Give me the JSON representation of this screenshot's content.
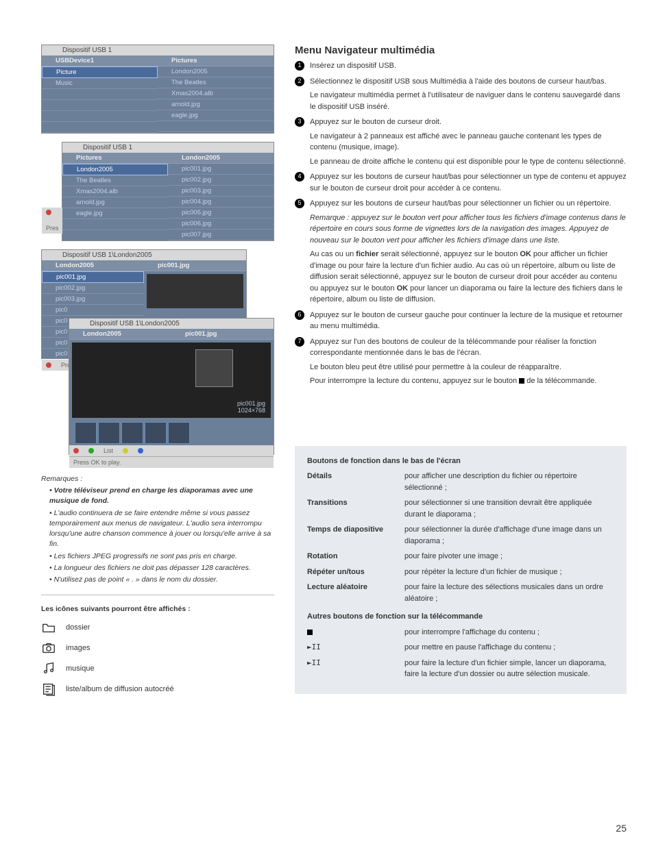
{
  "pageNumber": "25",
  "heading": "Menu Navigateur multimédia",
  "shots": {
    "s1": {
      "title": "Dispositif USB 1",
      "left": {
        "head": "USBDevice1",
        "rows": [
          "Picture",
          "Music"
        ],
        "selectedIndex": 0
      },
      "right": {
        "head": "Pictures",
        "rows": [
          "London2005",
          "The Beatles",
          "Xmas2004.alb",
          "arnold.jpg",
          "eagle.jpg"
        ]
      }
    },
    "s2": {
      "title": "Dispositif USB 1",
      "footerText": "Pres",
      "left": {
        "head": "Pictures",
        "rows": [
          "London2005",
          "The Beatles",
          "Xmas2004.alb",
          "arnold.jpg",
          "eagle.jpg"
        ],
        "selectedIndex": 0
      },
      "right": {
        "head": "London2005",
        "rows": [
          "pic001.jpg",
          "pic002.jpg",
          "pic003.jpg",
          "pic004.jpg",
          "pic005.jpg",
          "pic006.jpg",
          "pic007.jpg"
        ]
      }
    },
    "s3": {
      "title": "Dispositif USB 1\\London2005",
      "left": {
        "head": "London2005",
        "rows": [
          "pic001.jpg",
          "pic002.jpg",
          "pic003.jpg",
          "pic0",
          "pic0",
          "pic0",
          "pic0",
          "pic0"
        ],
        "selectedIndex": 0
      },
      "right": {
        "head": "pic001.jpg"
      },
      "footerText": "Press O"
    },
    "s4": {
      "title": "Dispositif USB 1\\London2005",
      "left": {
        "head": "London2005"
      },
      "right": {
        "head": "pic001.jpg"
      },
      "previewName": "pic001.jpg",
      "previewSize": "1024×768",
      "footerList": "List",
      "footerText": "Press OK to play."
    }
  },
  "remarques": {
    "title": "Remarques :",
    "items": [
      {
        "text": "Votre téléviseur prend en charge les diaporamas avec une musique de fond.",
        "bold": true
      },
      {
        "text": "L'audio continuera de se faire entendre même si vous passez temporairement aux menus de navigateur. L'audio sera interrompu lorsqu'une autre chanson commence à jouer ou lorsqu'elle arrive à sa fin."
      },
      {
        "text": "Les fichiers JPEG progressifs ne sont pas pris en charge."
      },
      {
        "text": "La longueur des fichiers ne doit pas dépasser 128 caractères."
      },
      {
        "text": "N'utilisez pas de point « . » dans le nom du dossier."
      }
    ]
  },
  "iconsTitle": "Les icônes suivants pourront être affichés :",
  "icons": [
    {
      "name": "folder-icon",
      "label": "dossier"
    },
    {
      "name": "camera-icon",
      "label": "images"
    },
    {
      "name": "music-note-icon",
      "label": "musique"
    },
    {
      "name": "playlist-icon",
      "label": "liste/album de diffusion autocréé"
    }
  ],
  "steps": [
    {
      "n": "1",
      "paras": [
        "Insérez un dispositif USB."
      ]
    },
    {
      "n": "2",
      "paras": [
        "Sélectionnez le dispositif USB sous Multimédia à l'aide des boutons de curseur haut/bas.",
        "Le navigateur multimédia permet à l'utilisateur de naviguer dans le contenu sauvegardé dans le dispositif USB inséré."
      ]
    },
    {
      "n": "3",
      "paras": [
        "Appuyez sur le bouton de curseur droit.",
        "Le navigateur à 2 panneaux est affiché avec le panneau gauche contenant les types de contenu (musique, image).",
        "Le panneau de droite affiche le contenu qui est disponible pour le type de contenu sélectionné."
      ]
    },
    {
      "n": "4",
      "paras": [
        "Appuyez sur les boutons de curseur haut/bas pour sélectionner un type de contenu et appuyez sur le bouton de curseur droit pour accéder à ce contenu."
      ]
    },
    {
      "n": "5",
      "paras": [
        "Appuyez sur les boutons de curseur haut/bas pour sélectionner un fichier ou un répertoire."
      ],
      "italicParas": [
        "Remarque : appuyez sur le bouton vert pour afficher tous les fichiers d'image contenus dans le répertoire en cours sous forme de vignettes lors de la navigation des images. Appuyez de nouveau sur le bouton vert pour afficher les fichiers d'image dans une liste."
      ],
      "extraParas": [
        "Au cas ou un <b>fichier</b> serait sélectionné, appuyez sur le bouton <b>OK</b> pour afficher un fichier d'image ou pour faire la lecture d'un fichier audio. Au cas où un répertoire, album ou liste de diffusion serait sélectionné, appuyez sur le bouton de curseur droit pour accéder au contenu ou appuyez sur le bouton <b>OK</b> pour lancer un diaporama ou faire la lecture des fichiers dans le répertoire, album ou liste de diffusion."
      ]
    },
    {
      "n": "6",
      "paras": [
        "Appuyez sur le bouton de curseur gauche pour continuer la lecture de la musique et retourner au menu multimédia."
      ]
    },
    {
      "n": "7",
      "paras": [
        "Appuyez sur l'un des boutons de couleur de la télécommande pour réaliser la fonction correspondante mentionnée dans le bas de l'écran.",
        "Le bouton bleu peut être utilisé pour permettre à la couleur de réapparaître."
      ],
      "stopPara": "Pour interrompre la lecture du contenu, appuyez sur le bouton __STOP__ de la télécommande."
    }
  ],
  "funcBox": {
    "heading1": "Boutons de fonction dans le bas de l'écran",
    "rows1": [
      {
        "label": "Détails",
        "desc": "pour afficher une description du fichier ou répertoire sélectionné ;"
      },
      {
        "label": "Transitions",
        "desc": "pour sélectionner si une transition devrait être appliquée durant le diaporama ;"
      },
      {
        "label": "Temps de diapositive",
        "desc": "pour sélectionner la durée d'affichage d'une image dans un diaporama ;"
      },
      {
        "label": "Rotation",
        "desc": "pour faire pivoter une image ;"
      },
      {
        "label": "Répéter un/tous",
        "desc": "pour répéter la lecture d'un fichier de musique ;"
      },
      {
        "label": "Lecture aléatoire",
        "desc": "pour faire la lecture des sélections musicales dans un ordre aléatoire ;"
      }
    ],
    "heading2": "Autres boutons de fonction sur la télécommande",
    "rows2": [
      {
        "sym": "stop",
        "desc": "pour interrompre l'affichage du contenu ;"
      },
      {
        "sym": "playpause",
        "desc": "pour mettre en pause l'affichage du contenu ;"
      },
      {
        "sym": "playpause",
        "desc": "pour faire la lecture d'un fichier simple, lancer un diaporama, faire la lecture d'un dossier ou autre sélection musicale."
      }
    ]
  }
}
